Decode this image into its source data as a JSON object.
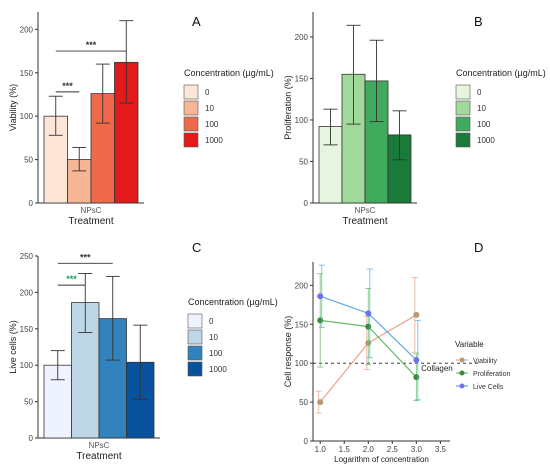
{
  "chart_data": [
    {
      "panel": "A",
      "type": "bar",
      "categories": [
        "NPsC"
      ],
      "xlabel": "Treatment",
      "ylabel": "Viability (%)",
      "ylim": [
        0,
        220
      ],
      "yticks": [
        0,
        50,
        100,
        150,
        200
      ],
      "legend_title": "Concentration (µg/mL)",
      "series": [
        {
          "name": "0",
          "value": 100,
          "err_low": 78,
          "err_high": 123,
          "color": "#fde6d8"
        },
        {
          "name": "10",
          "value": 50,
          "err_low": 37,
          "err_high": 64,
          "color": "#f6b594"
        },
        {
          "name": "100",
          "value": 126,
          "err_low": 92,
          "err_high": 160,
          "color": "#ef6a4a"
        },
        {
          "name": "1000",
          "value": 162,
          "err_low": 115,
          "err_high": 210,
          "color": "#e31a1c"
        }
      ],
      "significance": [
        {
          "label": "***",
          "from": 0,
          "to": 1,
          "y": 128
        },
        {
          "label": "***",
          "from": 0,
          "to": 3,
          "y": 175
        }
      ]
    },
    {
      "panel": "B",
      "type": "bar",
      "categories": [
        "NPsC"
      ],
      "xlabel": "Treatment",
      "ylabel": "Proliferation (%)",
      "ylim": [
        0,
        230
      ],
      "yticks": [
        0,
        50,
        100,
        150,
        200
      ],
      "legend_title": "Concentration (µg/mL)",
      "series": [
        {
          "name": "0",
          "value": 92,
          "err_low": 70,
          "err_high": 113,
          "color": "#e5f5e0"
        },
        {
          "name": "10",
          "value": 155,
          "err_low": 95,
          "err_high": 214,
          "color": "#a1d99b"
        },
        {
          "name": "100",
          "value": 147,
          "err_low": 98,
          "err_high": 196,
          "color": "#41ab5d"
        },
        {
          "name": "1000",
          "value": 82,
          "err_low": 52,
          "err_high": 111,
          "color": "#1a7a3a"
        }
      ]
    },
    {
      "panel": "C",
      "type": "bar",
      "categories": [
        "NPsC"
      ],
      "xlabel": "Treatment",
      "ylabel": "Live cells (%)",
      "ylim": [
        0,
        250
      ],
      "yticks": [
        0,
        50,
        100,
        150,
        200,
        250
      ],
      "legend_title": "Concentration (µg/mL)",
      "series": [
        {
          "name": "0",
          "value": 100,
          "err_low": 80,
          "err_high": 120,
          "color": "#eff3ff"
        },
        {
          "name": "10",
          "value": 186,
          "err_low": 145,
          "err_high": 226,
          "color": "#bdd7e7"
        },
        {
          "name": "100",
          "value": 164,
          "err_low": 107,
          "err_high": 222,
          "color": "#3182bd"
        },
        {
          "name": "1000",
          "value": 104,
          "err_low": 53,
          "err_high": 155,
          "color": "#08519c"
        }
      ],
      "significance": [
        {
          "label": "***",
          "from": 0,
          "to": 1,
          "y": 210,
          "color": "#1a9e5a"
        },
        {
          "label": "***",
          "from": 0,
          "to": 2,
          "y": 240
        }
      ]
    },
    {
      "panel": "D",
      "type": "line",
      "xlabel": "Logarithm of concentration",
      "ylabel": "Cell response (%)",
      "xlim": [
        0.85,
        3.7
      ],
      "ylim": [
        0,
        230
      ],
      "xticks": [
        "1.0",
        "1.5",
        "2.0",
        "2.5",
        "3.0",
        "3.5"
      ],
      "yticks": [
        0,
        50,
        100,
        150,
        200
      ],
      "legend_title": "Variable",
      "reference_line": {
        "y": 100,
        "label": "Collagen"
      },
      "series": [
        {
          "name": "Viability",
          "color": "#e8a48a",
          "marker": "#b59a6d",
          "x": [
            1,
            2,
            3
          ],
          "y": [
            50,
            126,
            162
          ],
          "err": [
            14,
            34,
            48
          ]
        },
        {
          "name": "Proliferation",
          "color": "#66bb66",
          "marker": "#3a8a3a",
          "x": [
            1,
            2,
            3
          ],
          "y": [
            155,
            147,
            82
          ],
          "err": [
            60,
            49,
            30
          ]
        },
        {
          "name": "Live Cells",
          "color": "#5aa9e6",
          "marker": "#7070ee",
          "x": [
            1,
            2,
            3
          ],
          "y": [
            186,
            164,
            104
          ],
          "err": [
            40,
            57,
            51
          ]
        }
      ]
    }
  ]
}
